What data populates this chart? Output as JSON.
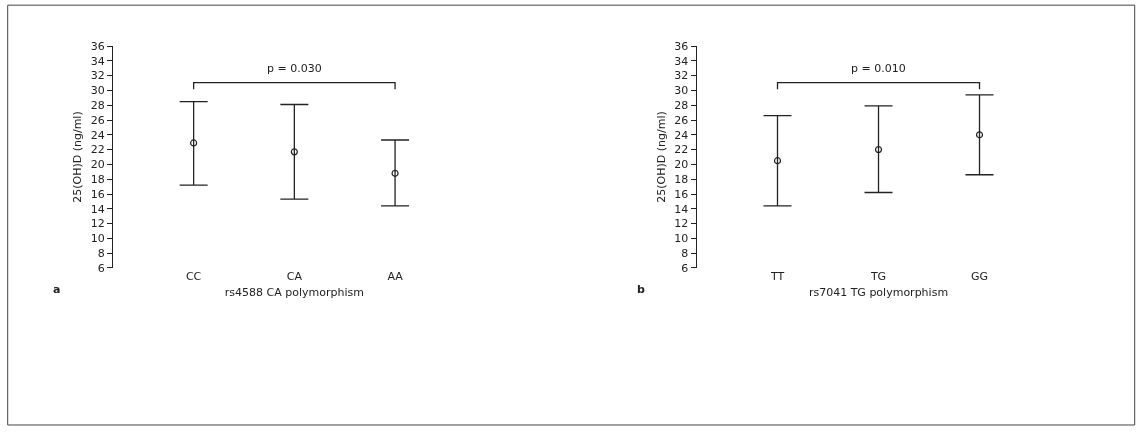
{
  "chart_data": [
    {
      "type": "scatter",
      "xlabel": "rs4588 CA polymorphism",
      "ylabel": "25(OH)D (ng/ml)",
      "categories": [
        "CC",
        "CA",
        "AA"
      ],
      "marker": "circle",
      "color": "#222222",
      "values": [
        22.9,
        21.7,
        18.8
      ],
      "errors": [
        [
          17.2,
          28.5
        ],
        [
          15.3,
          28.1
        ],
        [
          14.4,
          23.3
        ]
      ],
      "ylim": [
        6,
        36
      ],
      "yticks": [
        6,
        8,
        10,
        12,
        14,
        16,
        18,
        20,
        22,
        24,
        26,
        28,
        30,
        32,
        34,
        36
      ],
      "annotations": [
        "p = 0.030",
        "a"
      ]
    },
    {
      "type": "scatter",
      "xlabel": "rs7041 TG polymorphism",
      "ylabel": "25(OH)D (ng/ml)",
      "categories": [
        "TT",
        "TG",
        "GG"
      ],
      "marker": "circle",
      "color": "#222222",
      "values": [
        20.5,
        22.0,
        24.0
      ],
      "errors": [
        [
          14.4,
          26.6
        ],
        [
          16.2,
          27.9
        ],
        [
          18.6,
          29.4
        ]
      ],
      "ylim": [
        6,
        36
      ],
      "yticks": [
        6,
        8,
        10,
        12,
        14,
        16,
        18,
        20,
        22,
        24,
        26,
        28,
        30,
        32,
        34,
        36
      ],
      "annotations": [
        "p = 0.010",
        "b"
      ]
    }
  ]
}
